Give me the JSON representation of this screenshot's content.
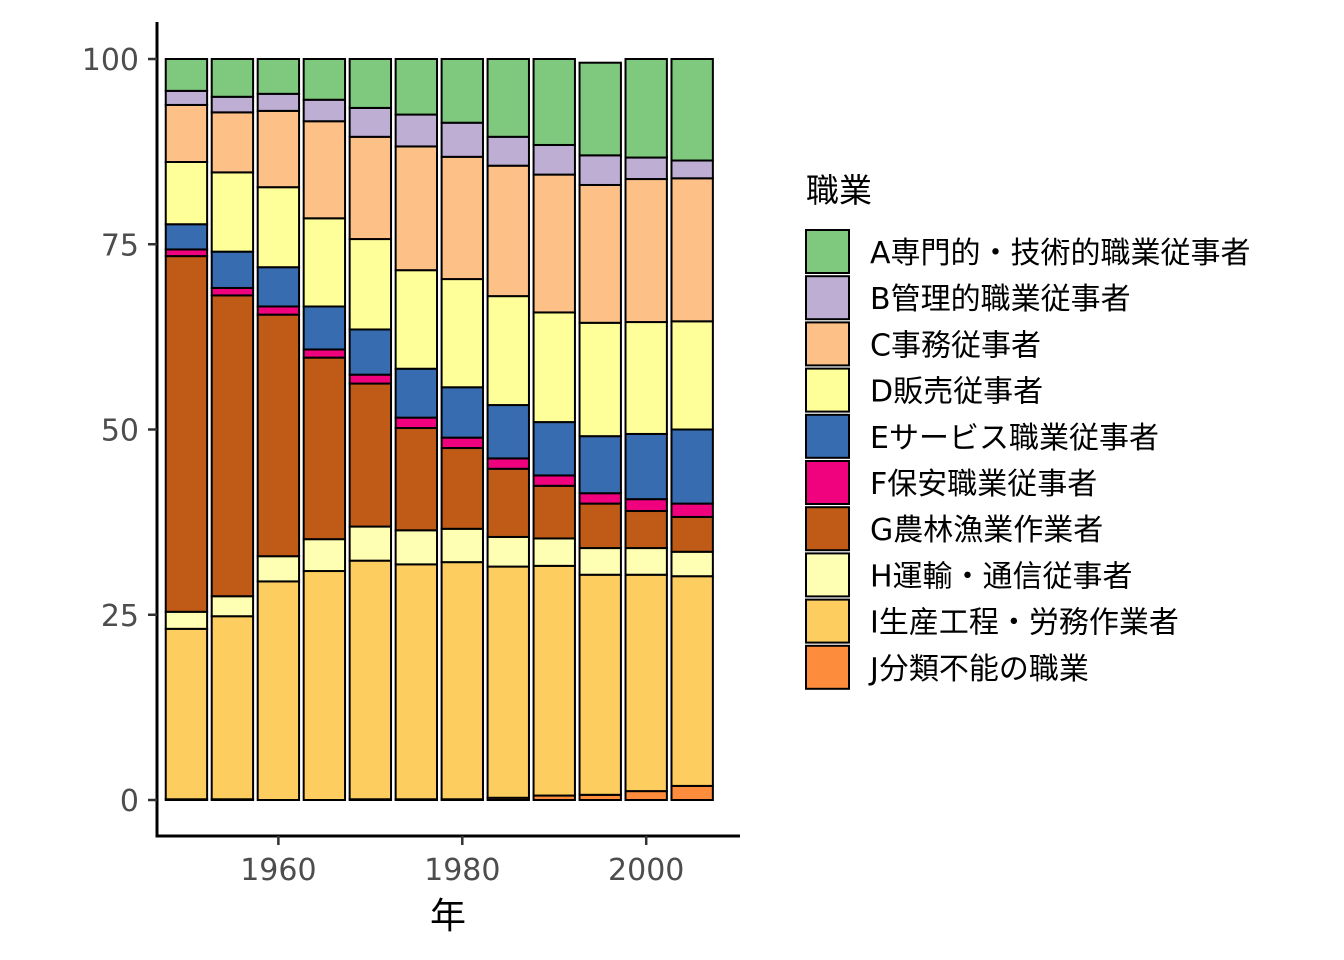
{
  "chart_data": {
    "type": "bar",
    "stacked": true,
    "xlabel": "年",
    "ylabel": "",
    "ylim": [
      0,
      100
    ],
    "yticks": [
      0,
      25,
      50,
      75,
      100
    ],
    "xlim": [
      1946.8,
      2010.2
    ],
    "xticks": [
      1960,
      1980,
      2000
    ],
    "bar_width": 4.5,
    "grid": false,
    "legend": {
      "title": "職業",
      "position": "right"
    },
    "x": [
      1950,
      1955,
      1960,
      1965,
      1970,
      1975,
      1980,
      1985,
      1990,
      1995,
      2000,
      2005
    ],
    "series": [
      {
        "name": "J分類不能の職業",
        "color": "#FD8D3C",
        "values": [
          0.1,
          0.1,
          0.0,
          0.0,
          0.1,
          0.1,
          0.1,
          0.3,
          0.6,
          0.7,
          1.2,
          1.9
        ]
      },
      {
        "name": "I生産工程・労務作業者",
        "color": "#FDCD60",
        "values": [
          23.0,
          24.7,
          29.5,
          30.9,
          32.2,
          31.7,
          32.0,
          31.2,
          31.0,
          29.7,
          29.2,
          28.3
        ]
      },
      {
        "name": "H運輸・通信従事者",
        "color": "#FFFFB3",
        "values": [
          2.3,
          2.7,
          3.4,
          4.3,
          4.6,
          4.6,
          4.5,
          4.0,
          3.7,
          3.6,
          3.6,
          3.3
        ]
      },
      {
        "name": "G農林漁業作業者",
        "color": "#BF5B17",
        "values": [
          48.0,
          40.6,
          32.6,
          24.5,
          19.3,
          13.8,
          10.9,
          9.2,
          7.1,
          6.0,
          5.0,
          4.7
        ]
      },
      {
        "name": "F保安職業従事者",
        "color": "#F0027F",
        "values": [
          0.9,
          1.0,
          1.1,
          1.1,
          1.2,
          1.4,
          1.4,
          1.4,
          1.4,
          1.4,
          1.6,
          1.8
        ]
      },
      {
        "name": "Eサービス職業従事者",
        "color": "#386CB0",
        "values": [
          3.4,
          4.9,
          5.3,
          5.8,
          6.1,
          6.6,
          6.8,
          7.2,
          7.2,
          7.7,
          8.8,
          10.0
        ]
      },
      {
        "name": "D販売従事者",
        "color": "#FFFF99",
        "values": [
          8.4,
          10.7,
          10.8,
          11.9,
          12.2,
          13.3,
          14.6,
          14.7,
          14.8,
          15.3,
          15.1,
          14.6
        ]
      },
      {
        "name": "C事務従事者",
        "color": "#FDC086",
        "values": [
          7.7,
          8.1,
          10.3,
          13.1,
          13.8,
          16.7,
          16.5,
          17.6,
          18.6,
          18.6,
          19.3,
          19.3
        ]
      },
      {
        "name": "B管理的職業従事者",
        "color": "#BEAED4",
        "values": [
          1.9,
          2.1,
          2.3,
          2.9,
          3.9,
          4.3,
          4.6,
          3.9,
          4.0,
          4.0,
          2.9,
          2.4
        ]
      },
      {
        "name": "A専門的・技術的職業従事者",
        "color": "#7FC97F",
        "values": [
          4.3,
          5.1,
          4.7,
          5.5,
          6.6,
          7.5,
          8.6,
          10.5,
          11.6,
          12.5,
          13.3,
          13.7
        ]
      }
    ]
  }
}
